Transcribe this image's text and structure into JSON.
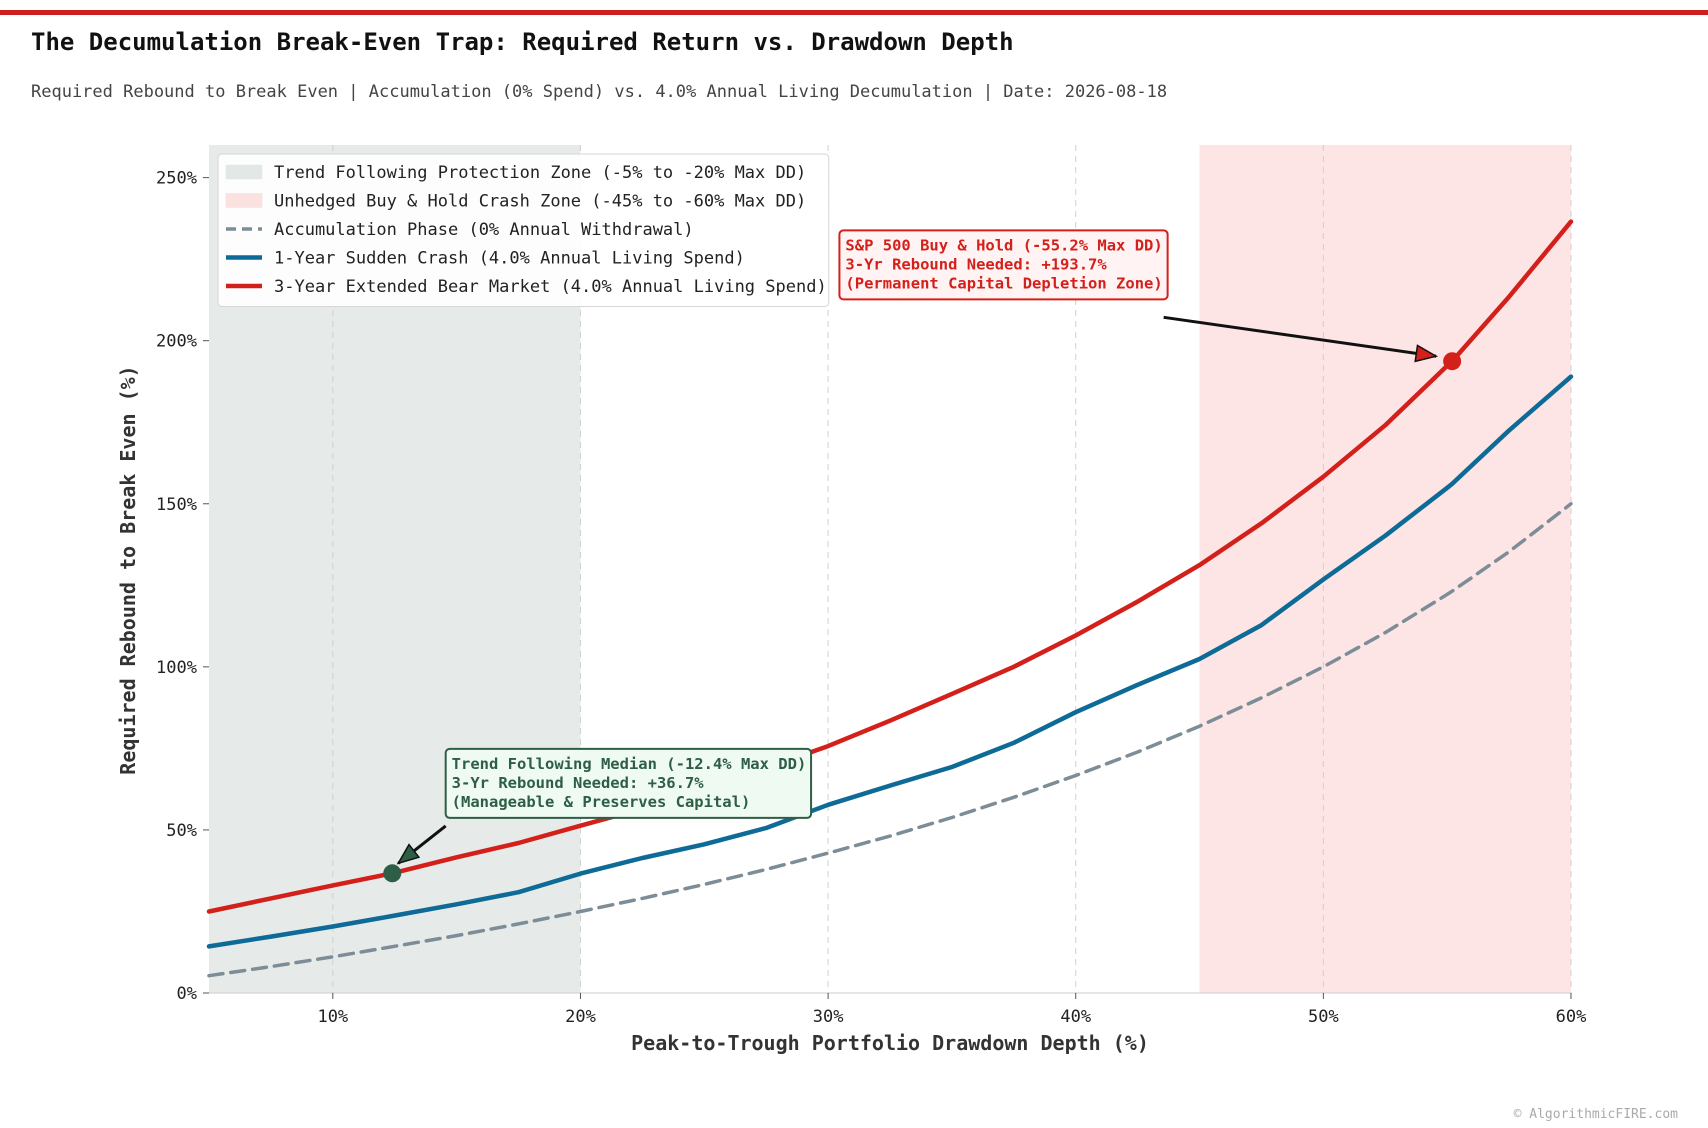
{
  "header": {
    "title": "The Decumulation Break-Even Trap: Required Return vs. Drawdown Depth",
    "subtitle": "Required Rebound to Break Even | Accumulation (0% Spend) vs. 4.0% Annual Living Decumulation | Date: 2026-08-18"
  },
  "footer": {
    "credit": "© AlgorithmicFIRE.com"
  },
  "colors": {
    "accent_bar": "#cc1f1f",
    "accumulation": "#7d8d97",
    "one_year": "#0e6a96",
    "three_year": "#d4201b",
    "protection_zone": "#e2e8e6",
    "crash_zone": "#fbe1df",
    "green_annotation": "#2e5e46",
    "red_annotation": "#d4201b"
  },
  "chart_data": {
    "type": "line",
    "xlabel": "Peak-to-Trough Portfolio Drawdown Depth (%)",
    "ylabel": "Required Rebound to Break Even (%)",
    "xlim": [
      5,
      60
    ],
    "ylim": [
      0,
      260
    ],
    "x_ticks": [
      10,
      20,
      30,
      40,
      50,
      60
    ],
    "x_tick_labels": [
      "10%",
      "20%",
      "30%",
      "40%",
      "50%",
      "60%"
    ],
    "y_ticks": [
      0,
      50,
      100,
      150,
      200,
      250
    ],
    "y_tick_labels": [
      "0%",
      "50%",
      "100%",
      "150%",
      "200%",
      "250%"
    ],
    "grid": "vertical dashed",
    "legend_position": "top-left",
    "x": [
      5,
      7.5,
      10,
      12.4,
      15,
      17.5,
      20,
      22.5,
      25,
      27.5,
      30,
      32.5,
      35,
      37.5,
      40,
      42.5,
      45,
      47.5,
      50,
      52.5,
      55,
      55.2,
      57.5,
      60
    ],
    "series": [
      {
        "name": "Accumulation Phase (0% Annual Withdrawal)",
        "style": "dashed",
        "color": "#7d8d97",
        "values": [
          5.3,
          8.1,
          11.1,
          14.2,
          17.6,
          21.2,
          25.0,
          29.0,
          33.3,
          37.9,
          42.9,
          48.1,
          53.8,
          60.0,
          66.7,
          73.9,
          81.8,
          90.5,
          100.0,
          110.5,
          122.2,
          123.2,
          135.3,
          150.0
        ]
      },
      {
        "name": "1-Year Sudden Crash (4.0% Annual Living Spend)",
        "style": "solid",
        "color": "#0e6a96",
        "values": [
          14.3,
          17.3,
          20.4,
          23.6,
          27.2,
          30.9,
          36.6,
          41.4,
          45.6,
          50.6,
          57.7,
          63.6,
          69.3,
          76.7,
          86.1,
          94.5,
          102.4,
          112.8,
          126.8,
          140.2,
          154.9,
          156.1,
          172.5,
          189.0
        ]
      },
      {
        "name": "3-Year Extended Bear Market (4.0% Annual Living Spend)",
        "style": "solid",
        "color": "#d4201b",
        "values": [
          25.0,
          29.0,
          33.0,
          36.7,
          41.6,
          46.0,
          51.3,
          56.5,
          62.7,
          69.0,
          75.7,
          83.5,
          91.7,
          100.0,
          109.6,
          120.0,
          131.2,
          144.0,
          158.3,
          174.1,
          192.3,
          193.7,
          213.5,
          236.5
        ]
      }
    ],
    "shaded_regions": [
      {
        "name": "Trend Following Protection Zone (-5% to -20% Max DD)",
        "x_range": [
          5,
          20
        ],
        "color": "#e2e8e6"
      },
      {
        "name": "Unhedged Buy & Hold Crash Zone (-45% to -60% Max DD)",
        "x_range": [
          45,
          60
        ],
        "color": "#fbe1df"
      }
    ],
    "annotations": [
      {
        "point": [
          12.4,
          36.7
        ],
        "lines": [
          "Trend Following Median (-12.4% Max DD)",
          "3-Yr Rebound Needed: +36.7%",
          "(Manageable & Preserves Capital)"
        ],
        "color": "#2e5e46",
        "box": "#eefaf2",
        "text_anchor": [
          14.8,
          73
        ]
      },
      {
        "point": [
          55.2,
          193.7
        ],
        "lines": [
          "S&P 500 Buy & Hold (-55.2% Max DD)",
          "3-Yr Rebound Needed: +193.7%",
          "(Permanent Capital Depletion Zone)"
        ],
        "color": "#d4201b",
        "box": "#fff4f3",
        "text_anchor": [
          30.7,
          232
        ]
      }
    ]
  }
}
